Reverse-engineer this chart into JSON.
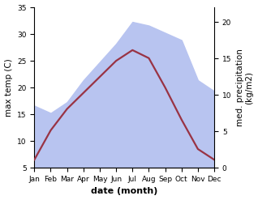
{
  "months": [
    "Jan",
    "Feb",
    "Mar",
    "Apr",
    "May",
    "Jun",
    "Jul",
    "Aug",
    "Sep",
    "Oct",
    "Nov",
    "Dec"
  ],
  "max_temp": [
    6.5,
    12.0,
    16.0,
    19.0,
    22.0,
    25.0,
    27.0,
    25.5,
    20.0,
    14.0,
    8.5,
    6.5
  ],
  "precipitation": [
    8.5,
    7.5,
    9.0,
    12.0,
    14.5,
    17.0,
    20.0,
    19.5,
    18.5,
    17.5,
    12.0,
    10.5
  ],
  "temp_color": "#993344",
  "precip_fill_color": "#b8c4f0",
  "temp_ylim": [
    5,
    35
  ],
  "temp_yticks": [
    5,
    10,
    15,
    20,
    25,
    30,
    35
  ],
  "precip_ylim": [
    0,
    22
  ],
  "precip_yticks": [
    0,
    5,
    10,
    15,
    20
  ],
  "ylabel_left": "max temp (C)",
  "ylabel_right": "med. precipitation\n(kg/m2)",
  "xlabel": "date (month)",
  "bg_color": "#ffffff",
  "temp_linewidth": 1.6
}
